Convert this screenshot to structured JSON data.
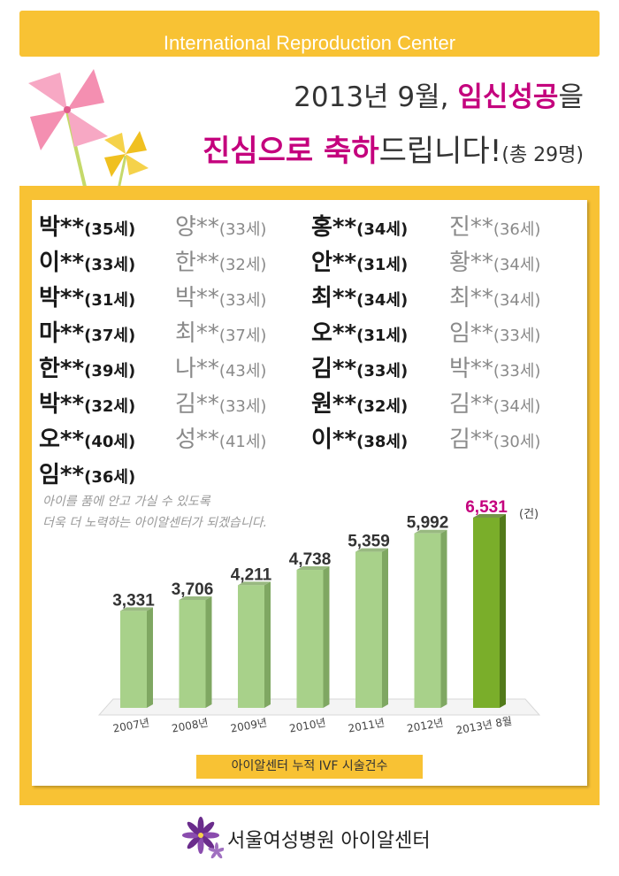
{
  "header": {
    "title": "International Reproduction Center"
  },
  "headline": {
    "line1_a": "2013년 9월, ",
    "line1_b": "임신성공",
    "line1_c": "을",
    "line2_a": "진심으로 축하",
    "line2_b": "드립니다!",
    "line2_c": "(총 29명)"
  },
  "names": [
    {
      "n": "박**",
      "a": "(35세)"
    },
    {
      "n": "양**",
      "a": "(33세)"
    },
    {
      "n": "홍**",
      "a": "(34세)"
    },
    {
      "n": "진**",
      "a": "(36세)"
    },
    {
      "n": "이**",
      "a": "(33세)"
    },
    {
      "n": "한**",
      "a": "(32세)"
    },
    {
      "n": "안**",
      "a": "(31세)"
    },
    {
      "n": "황**",
      "a": "(34세)"
    },
    {
      "n": "박**",
      "a": "(31세)"
    },
    {
      "n": "박**",
      "a": "(33세)"
    },
    {
      "n": "최**",
      "a": "(34세)"
    },
    {
      "n": "최**",
      "a": "(34세)"
    },
    {
      "n": "마**",
      "a": "(37세)"
    },
    {
      "n": "최**",
      "a": "(37세)"
    },
    {
      "n": "오**",
      "a": "(31세)"
    },
    {
      "n": "임**",
      "a": "(33세)"
    },
    {
      "n": "한**",
      "a": "(39세)"
    },
    {
      "n": "나**",
      "a": "(43세)"
    },
    {
      "n": "김**",
      "a": "(33세)"
    },
    {
      "n": "박**",
      "a": "(33세)"
    },
    {
      "n": "박**",
      "a": "(32세)"
    },
    {
      "n": "김**",
      "a": "(33세)"
    },
    {
      "n": "원**",
      "a": "(32세)"
    },
    {
      "n": "김**",
      "a": "(34세)"
    },
    {
      "n": "오**",
      "a": "(40세)"
    },
    {
      "n": "성**",
      "a": "(41세)"
    },
    {
      "n": "이**",
      "a": "(38세)"
    },
    {
      "n": "김**",
      "a": "(30세)"
    },
    {
      "n": "임**",
      "a": "(36세)"
    }
  ],
  "message": {
    "line1": "아이를 품에 안고 가실 수 있도록",
    "line2": "더욱 더 노력하는 아이알센터가 되겠습니다."
  },
  "chart_data": {
    "type": "bar",
    "categories": [
      "2007년",
      "2008년",
      "2009년",
      "2010년",
      "2011년",
      "2012년",
      "2013년 8월"
    ],
    "values": [
      3331,
      3706,
      4211,
      4738,
      5359,
      5992,
      6531
    ],
    "value_labels": [
      "3,331",
      "3,706",
      "4,211",
      "4,738",
      "5,359",
      "5,992",
      "6,531"
    ],
    "unit_label": "(건)",
    "caption": "아이알센터 누적 IVF 시술건수",
    "colors": {
      "bar": "#a8d18a",
      "bar_side": "#7fa762",
      "highlight": "#7aae2a",
      "highlight_side": "#527a1a",
      "highlight_label": "#c4007d"
    }
  },
  "footer": {
    "text": "서울여성병원 아이알센터"
  },
  "colors": {
    "accent_yellow": "#f8c234",
    "magenta": "#c4007d"
  }
}
